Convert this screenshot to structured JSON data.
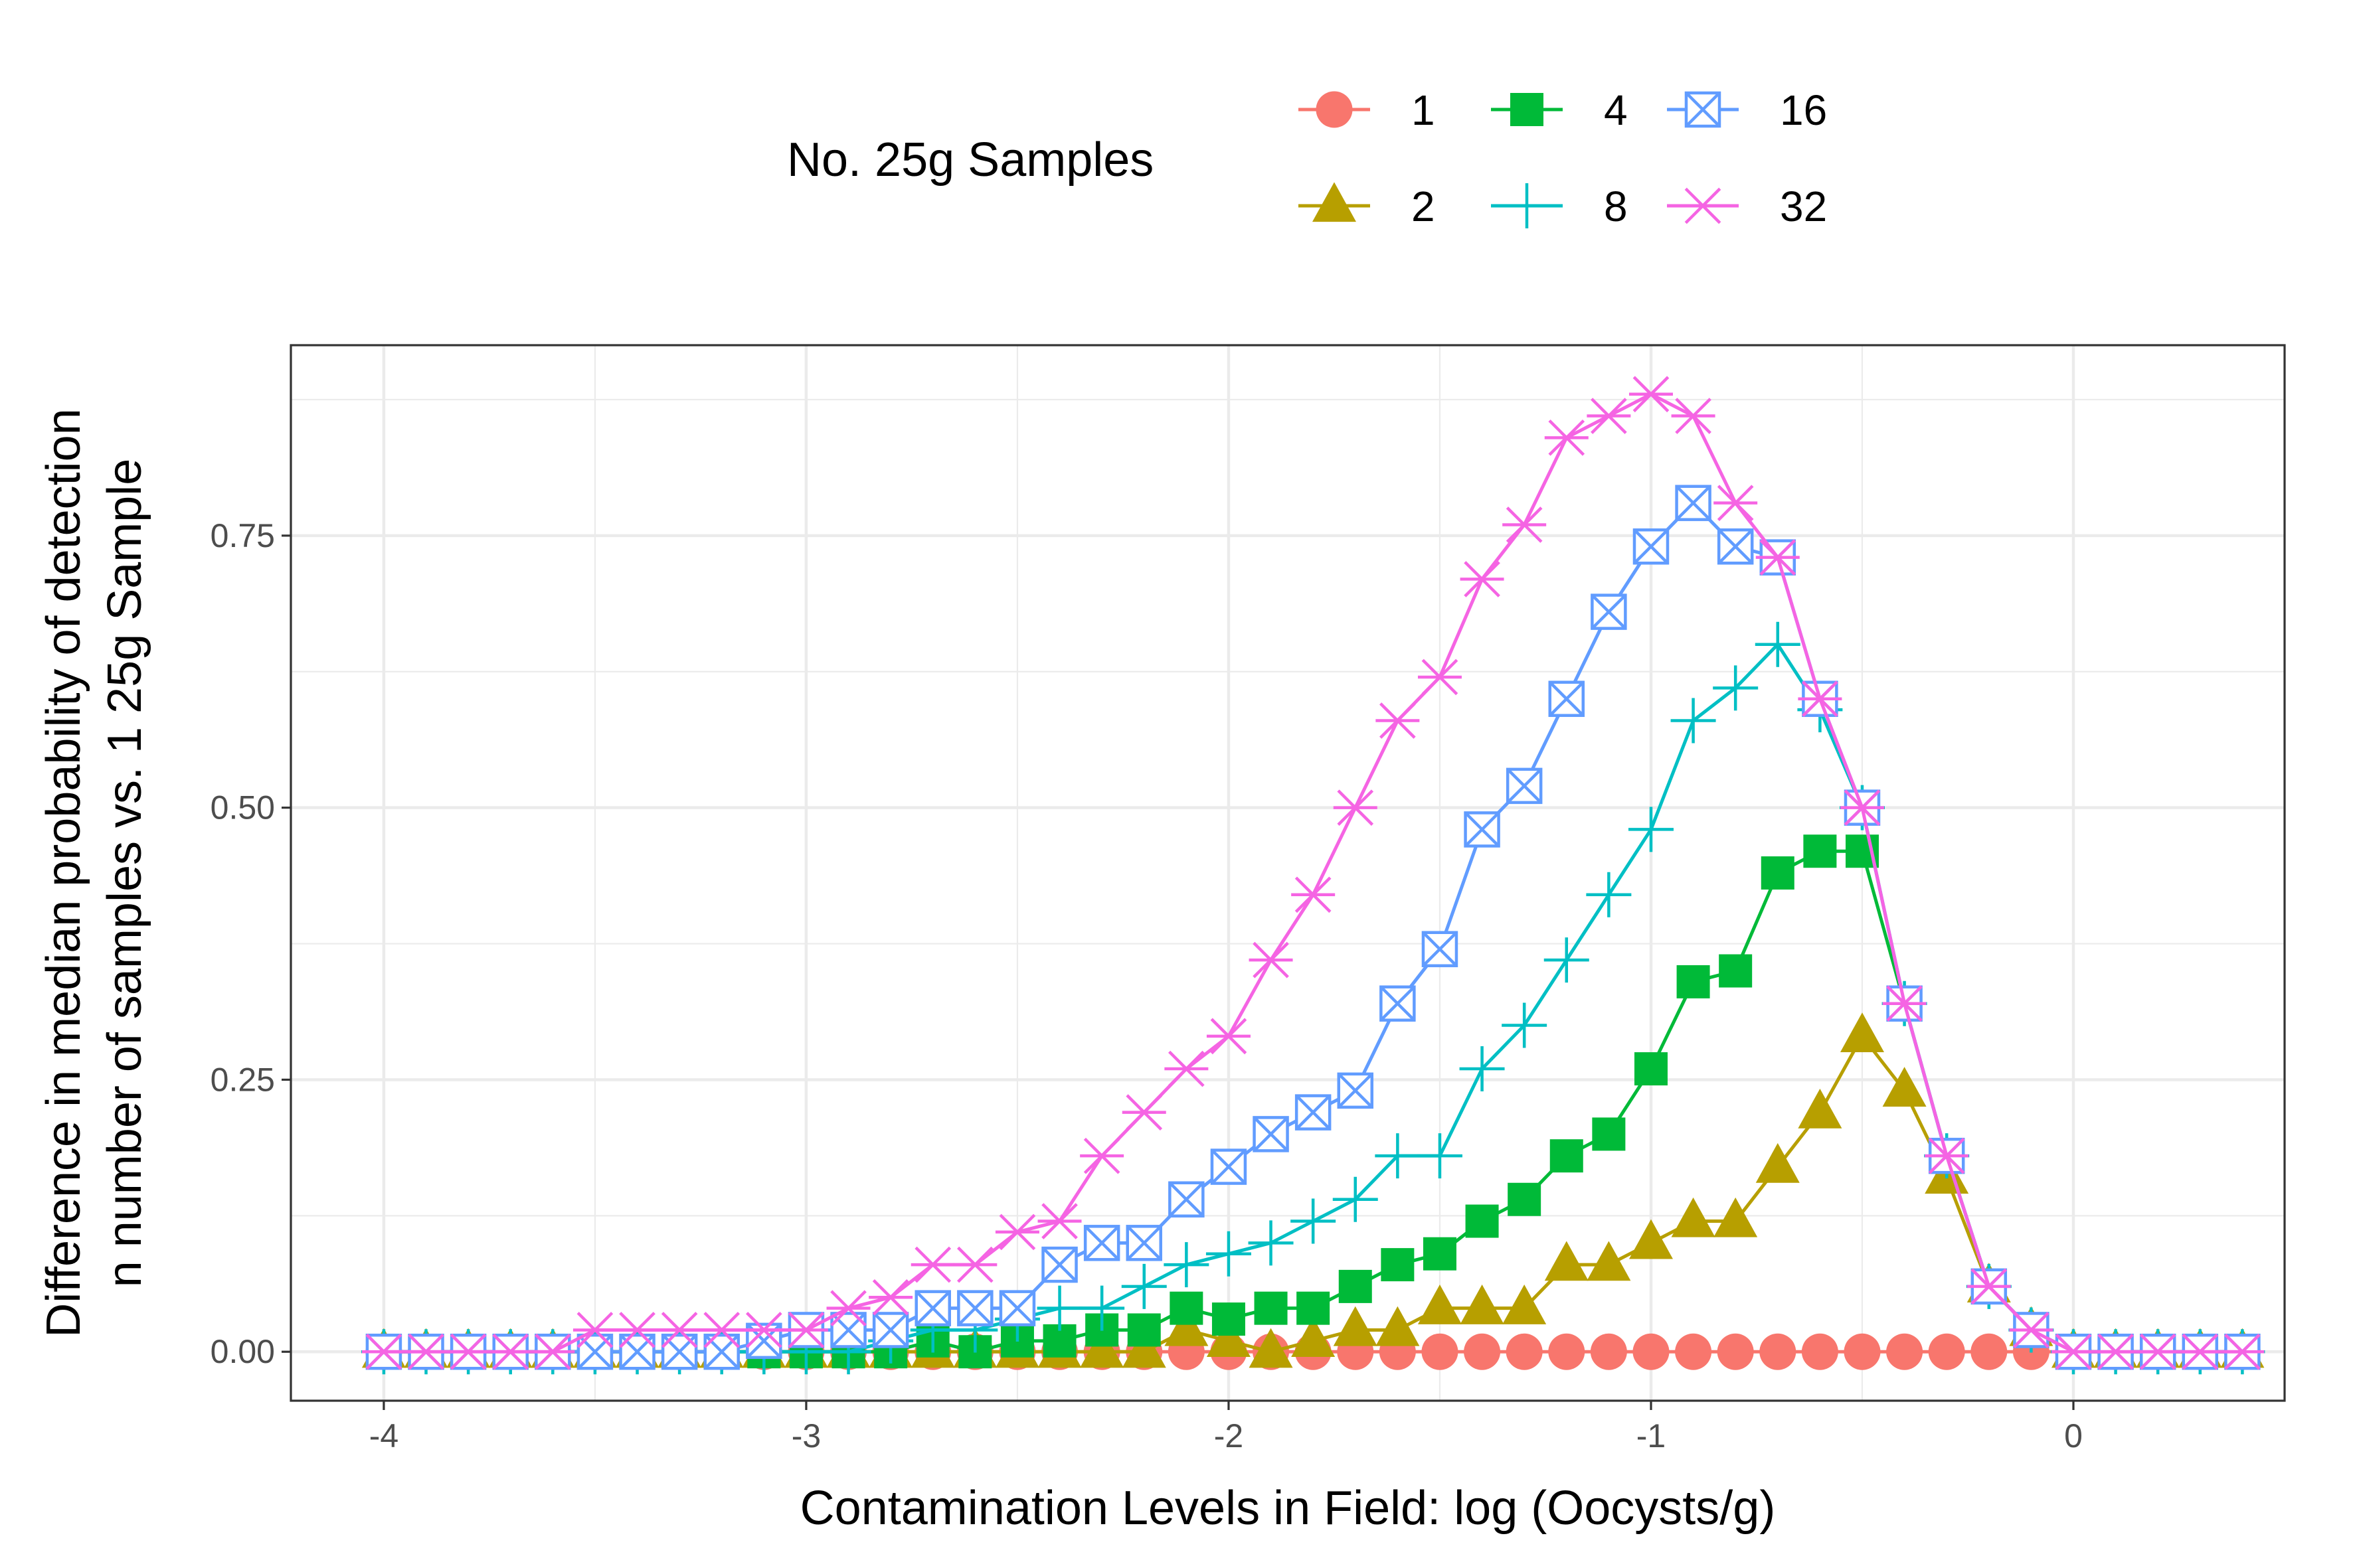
{
  "chart_data": {
    "type": "line",
    "title": "",
    "xlabel": "Contamination Levels in Field: log (Oocysts/g)",
    "ylabel_lines": [
      "Difference in median probability of detection",
      "n number of samples vs. 1 25g Sample"
    ],
    "xlim": [
      -4.22,
      0.5
    ],
    "ylim": [
      -0.045,
      0.925
    ],
    "x_ticks": [
      -4,
      -3,
      -2,
      -1,
      0
    ],
    "x_tick_labels": [
      "-4",
      "-3",
      "-2",
      "-1",
      "0"
    ],
    "y_ticks": [
      0,
      0.25,
      0.5,
      0.75
    ],
    "y_tick_labels": [
      "0.00",
      "0.25",
      "0.50",
      "0.75"
    ],
    "grid": true,
    "legend": {
      "title": "No. 25g Samples",
      "position": "top"
    },
    "x": [
      -4.0,
      -3.9,
      -3.8,
      -3.7,
      -3.6,
      -3.5,
      -3.4,
      -3.3,
      -3.2,
      -3.1,
      -3.0,
      -2.9,
      -2.8,
      -2.7,
      -2.6,
      -2.5,
      -2.4,
      -2.3,
      -2.2,
      -2.1,
      -2.0,
      -1.9,
      -1.8,
      -1.7,
      -1.6,
      -1.5,
      -1.4,
      -1.3,
      -1.2,
      -1.1,
      -1.0,
      -0.9,
      -0.8,
      -0.7,
      -0.6,
      -0.5,
      -0.4,
      -0.3,
      -0.2,
      -0.1,
      0.0,
      0.1,
      0.2,
      0.3,
      0.4
    ],
    "series": [
      {
        "name": "1",
        "color": "#F8766D",
        "marker": "circle",
        "values": [
          0,
          0,
          0,
          0,
          0,
          0,
          0,
          0,
          0,
          0,
          0,
          0,
          0,
          0,
          0,
          0,
          0,
          0,
          0,
          0,
          0,
          0,
          0,
          0,
          0,
          0,
          0,
          0,
          0,
          0,
          0,
          0,
          0,
          0,
          0,
          0,
          0,
          0,
          0,
          0,
          0,
          0,
          0,
          0,
          0
        ]
      },
      {
        "name": "2",
        "color": "#B79F00",
        "marker": "triangle",
        "values": [
          0,
          0,
          0,
          0,
          0,
          0,
          0,
          0,
          0,
          0,
          0,
          0,
          0,
          0,
          0,
          0,
          0,
          0,
          0,
          0.02,
          0.01,
          0,
          0.01,
          0.02,
          0.02,
          0.04,
          0.04,
          0.04,
          0.08,
          0.08,
          0.1,
          0.12,
          0.12,
          0.17,
          0.22,
          0.29,
          0.24,
          0.16,
          0.06,
          0.02,
          0,
          0,
          0,
          0,
          0
        ]
      },
      {
        "name": "4",
        "color": "#00BA38",
        "marker": "square",
        "values": [
          0,
          0,
          0,
          0,
          0,
          0,
          0,
          0,
          0,
          0,
          0,
          0,
          0,
          0.01,
          0,
          0.01,
          0.01,
          0.02,
          0.02,
          0.04,
          0.03,
          0.04,
          0.04,
          0.06,
          0.08,
          0.09,
          0.12,
          0.14,
          0.18,
          0.2,
          0.26,
          0.34,
          0.35,
          0.44,
          0.46,
          0.46,
          0.32,
          0.18,
          0.06,
          0.02,
          0,
          0,
          0,
          0,
          0
        ]
      },
      {
        "name": "8",
        "color": "#00BFC4",
        "marker": "plus",
        "values": [
          0,
          0,
          0,
          0,
          0,
          0,
          0,
          0,
          0,
          0,
          0,
          0,
          0.01,
          0.02,
          0.02,
          0.03,
          0.04,
          0.04,
          0.06,
          0.08,
          0.09,
          0.1,
          0.12,
          0.14,
          0.18,
          0.18,
          0.26,
          0.3,
          0.36,
          0.42,
          0.48,
          0.58,
          0.61,
          0.65,
          0.59,
          0.5,
          0.32,
          0.18,
          0.06,
          0.02,
          0,
          0,
          0,
          0,
          0
        ]
      },
      {
        "name": "16",
        "color": "#619CFF",
        "marker": "square-x",
        "values": [
          0,
          0,
          0,
          0,
          0,
          0,
          0,
          0,
          0,
          0.01,
          0.02,
          0.02,
          0.02,
          0.04,
          0.04,
          0.04,
          0.08,
          0.1,
          0.1,
          0.14,
          0.17,
          0.2,
          0.22,
          0.24,
          0.32,
          0.37,
          0.48,
          0.52,
          0.6,
          0.68,
          0.74,
          0.78,
          0.74,
          0.73,
          0.6,
          0.5,
          0.32,
          0.18,
          0.06,
          0.02,
          0,
          0,
          0,
          0,
          0
        ]
      },
      {
        "name": "32",
        "color": "#F564E3",
        "marker": "asterisk",
        "values": [
          0,
          0,
          0,
          0,
          0,
          0.02,
          0.02,
          0.02,
          0.02,
          0.02,
          0.02,
          0.04,
          0.05,
          0.08,
          0.08,
          0.11,
          0.12,
          0.18,
          0.22,
          0.26,
          0.29,
          0.36,
          0.42,
          0.5,
          0.58,
          0.62,
          0.71,
          0.76,
          0.84,
          0.86,
          0.88,
          0.86,
          0.78,
          0.73,
          0.6,
          0.5,
          0.32,
          0.18,
          0.06,
          0.02,
          0,
          0,
          0,
          0,
          0
        ]
      }
    ]
  }
}
